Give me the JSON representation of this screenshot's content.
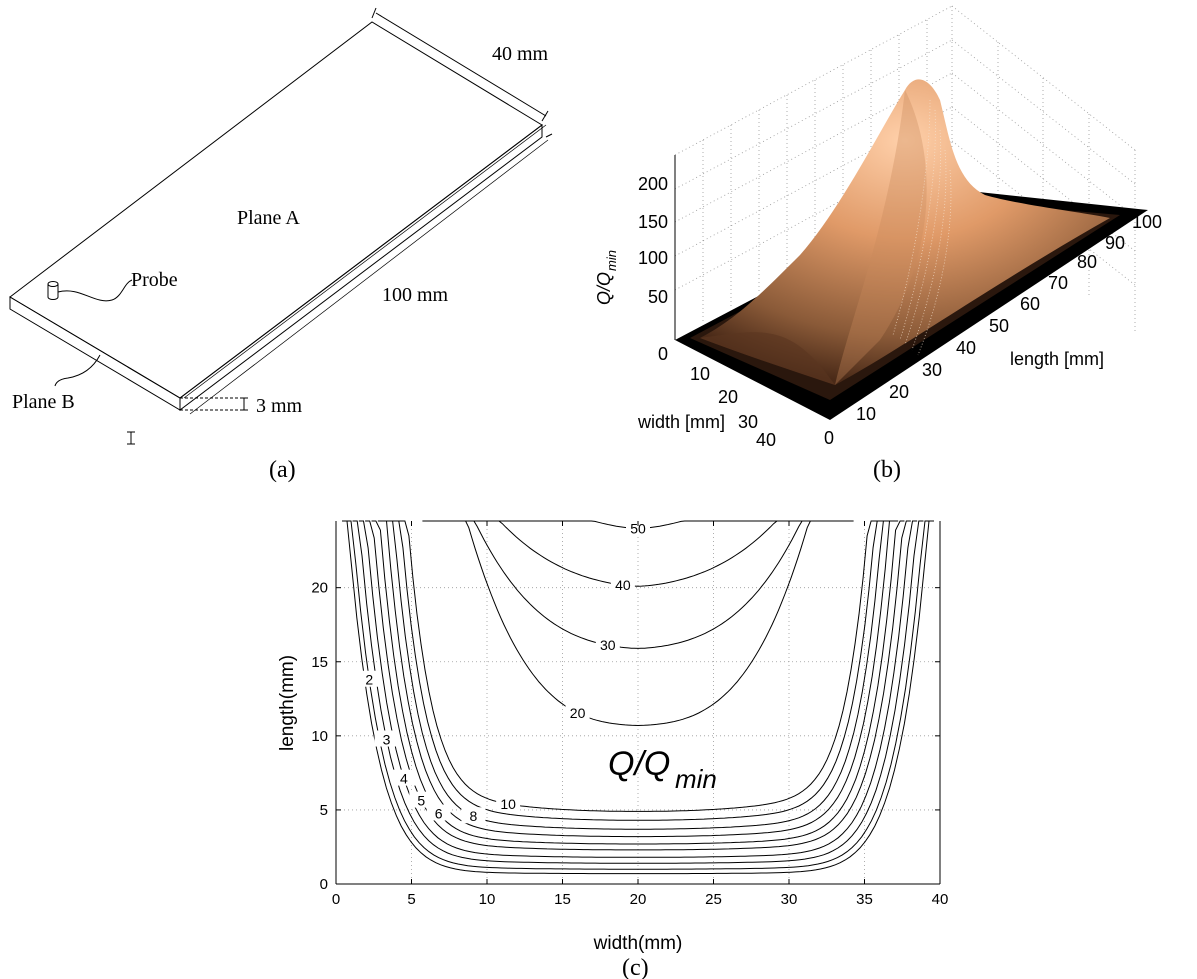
{
  "panel_a": {
    "dim_width": "40 mm",
    "dim_length": "100 mm",
    "dim_thickness": "3 mm",
    "plane_a": "Plane A",
    "plane_b": "Plane B",
    "probe": "Probe",
    "caption": "(a)"
  },
  "panel_b": {
    "zlabel_main": "Q/Q",
    "zlabel_sub": "min",
    "xlabel": "width [mm]",
    "ylabel": "length [mm]",
    "caption": "(b)"
  },
  "panel_c": {
    "label_main": "Q/Q",
    "label_sub": "min",
    "caption": "(c)"
  },
  "chart_data": [
    {
      "type": "surface",
      "panel": "b",
      "xlabel": "width [mm]",
      "ylabel": "length [mm]",
      "zlabel": "Q/Qmin",
      "xlim": [
        0,
        40
      ],
      "ylim": [
        0,
        100
      ],
      "zlim": [
        0,
        250
      ],
      "x_ticks": [
        "40",
        "30",
        "20",
        "10",
        "0"
      ],
      "y_ticks": [
        "0",
        "10",
        "20",
        "30",
        "40",
        "50",
        "60",
        "70",
        "80",
        "90",
        "100"
      ],
      "z_ticks": [
        "0",
        "50",
        "100",
        "150",
        "200"
      ],
      "peak": {
        "width": 20,
        "length": 50,
        "value": 235
      },
      "colormap": [
        "#000000",
        "#3a2214",
        "#7a4c30",
        "#b87a52",
        "#e8a67a",
        "#ffc8a0"
      ],
      "grid": true
    },
    {
      "type": "contour",
      "panel": "c",
      "xlabel": "width(mm)",
      "ylabel": "length(mm)",
      "xlim": [
        0,
        40
      ],
      "ylim": [
        0,
        24.5
      ],
      "x_ticks": [
        "0",
        "5",
        "10",
        "15",
        "20",
        "25",
        "30",
        "35",
        "40"
      ],
      "y_ticks": [
        "0",
        "5",
        "10",
        "15",
        "20"
      ],
      "grid": true,
      "levels": [
        {
          "value": 1,
          "min_length": 0.7,
          "label": ""
        },
        {
          "value": 2,
          "min_length": 1.0,
          "label": "2"
        },
        {
          "value": 3,
          "min_length": 1.4,
          "label": "3"
        },
        {
          "value": 4,
          "min_length": 1.8,
          "label": "4"
        },
        {
          "value": 5,
          "min_length": 2.3,
          "label": "5"
        },
        {
          "value": 6,
          "min_length": 2.7,
          "label": "6"
        },
        {
          "value": 7,
          "min_length": 3.2,
          "label": ""
        },
        {
          "value": 8,
          "min_length": 3.7,
          "label": "8"
        },
        {
          "value": 9,
          "min_length": 4.3,
          "label": ""
        },
        {
          "value": 10,
          "min_length": 4.9,
          "label": "10"
        },
        {
          "value": 20,
          "min_length": 10.7,
          "label": "20"
        },
        {
          "value": 30,
          "min_length": 15.9,
          "label": "30"
        },
        {
          "value": 40,
          "min_length": 20.1,
          "label": "40"
        },
        {
          "value": 50,
          "min_length": 24.0,
          "label": "50"
        }
      ]
    }
  ]
}
